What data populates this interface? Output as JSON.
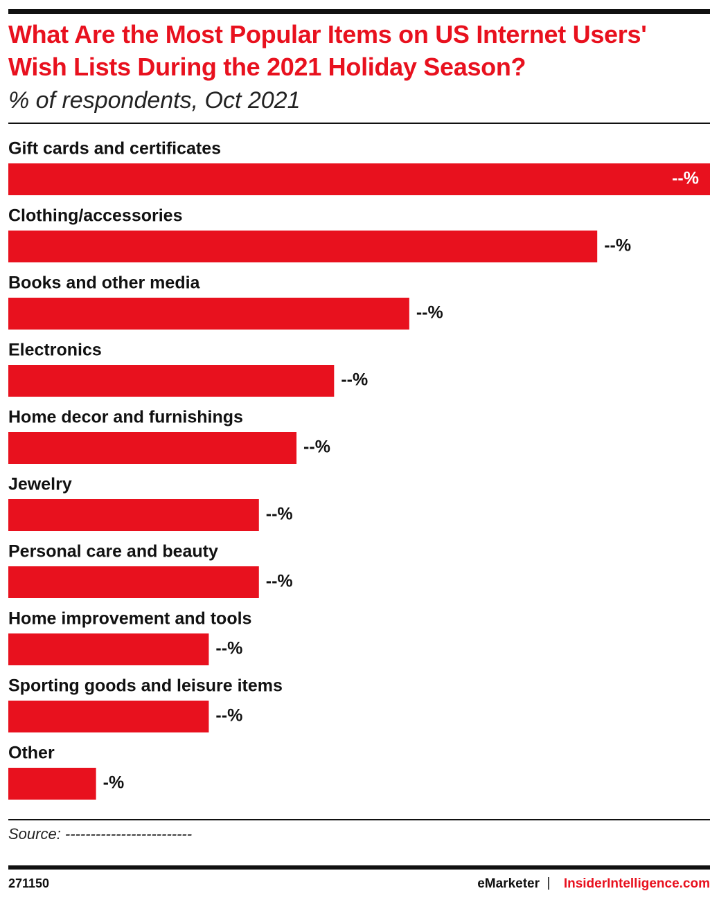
{
  "chart_data": {
    "type": "bar",
    "orientation": "horizontal",
    "title": "What Are the Most Popular Items on US Internet Users' Wish Lists During the 2021 Holiday Season?",
    "subtitle": "% of respondents, Oct 2021",
    "categories": [
      "Gift cards and certificates",
      "Clothing/accessories",
      "Books and other media",
      "Electronics",
      "Home decor and furnishings",
      "Jewelry",
      "Personal care and beauty",
      "Home improvement and tools",
      "Sporting goods and leisure items",
      "Other"
    ],
    "values": [
      56,
      47,
      32,
      26,
      23,
      20,
      20,
      16,
      16,
      7
    ],
    "value_labels": [
      "--%",
      "--%",
      "--%",
      "--%",
      "--%",
      "--%",
      "--%",
      "--%",
      "--%",
      "-%"
    ],
    "color": "#e8111e",
    "source": "Source: -------------------------"
  },
  "footer": {
    "id": "271150",
    "brand": "eMarketer",
    "separator": "|",
    "site": "InsiderIntelligence.com"
  }
}
